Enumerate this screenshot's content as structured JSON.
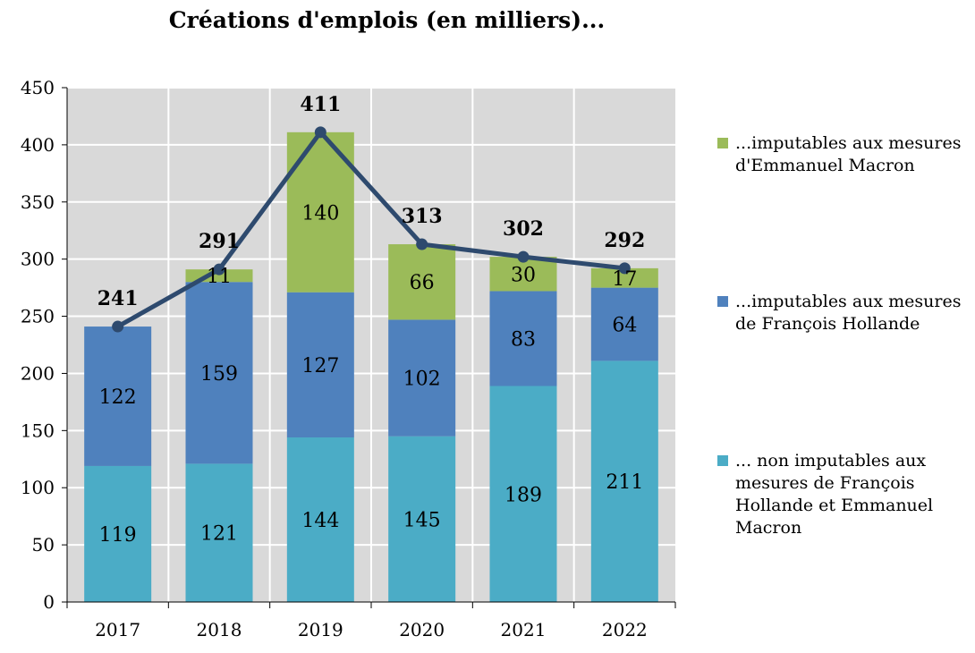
{
  "chart_data": {
    "type": "bar",
    "title": "Créations d'emplois (en milliers)...",
    "xlabel": "",
    "ylabel": "",
    "categories": [
      "2017",
      "2018",
      "2019",
      "2020",
      "2021",
      "2022"
    ],
    "ylim": [
      0,
      450
    ],
    "yticks": [
      0,
      50,
      100,
      150,
      200,
      250,
      300,
      350,
      400,
      450
    ],
    "grid": true,
    "legend_position": "right",
    "series": [
      {
        "name": "... non imputables aux mesures de François Hollande et Emmanuel Macron",
        "values": [
          119,
          121,
          144,
          145,
          189,
          211
        ],
        "color": "#4BACC6"
      },
      {
        "name": "...imputables aux mesures de François Hollande",
        "values": [
          122,
          159,
          127,
          102,
          83,
          64
        ],
        "color": "#4F81BD"
      },
      {
        "name": "...imputables aux mesures d'Emmanuel Macron",
        "values": [
          0,
          11,
          140,
          66,
          30,
          17
        ],
        "color": "#9BBB59"
      }
    ],
    "segment_labels": [
      [
        "119",
        "121",
        "144",
        "145",
        "189",
        "211"
      ],
      [
        "122",
        "159",
        "127",
        "102",
        "83",
        "64"
      ],
      [
        "",
        "11",
        "140",
        "66",
        "30",
        "17"
      ]
    ],
    "totals": {
      "name": "Total",
      "values": [
        241,
        291,
        411,
        313,
        302,
        292
      ],
      "labels": [
        "241",
        "291",
        "411",
        "313",
        "302",
        "292"
      ],
      "color": "#2E4A6E"
    },
    "legend_order": [
      2,
      1,
      0
    ]
  },
  "colors": {
    "plot_background": "#D9D9D9",
    "grid": "#FFFFFF",
    "axis": "#000000"
  }
}
